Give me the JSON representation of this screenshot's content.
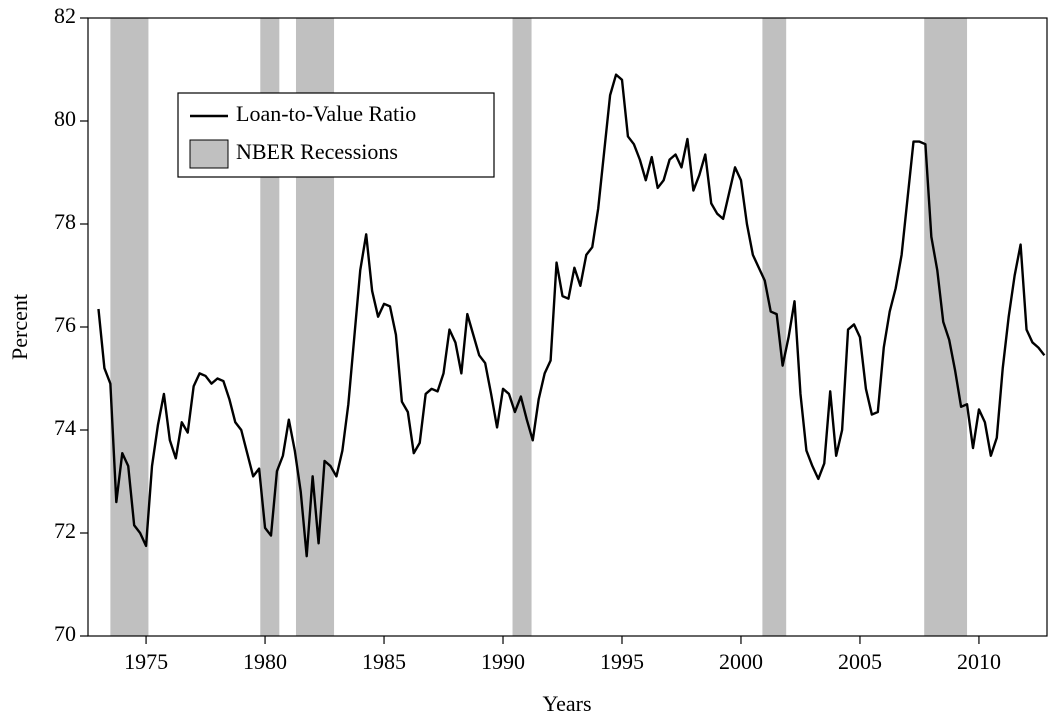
{
  "chart_data": {
    "type": "line",
    "xlabel": "Years",
    "ylabel": "Percent",
    "xlim": [
      1972.56,
      2012.86
    ],
    "ylim": [
      70,
      82
    ],
    "xticks": [
      1975,
      1980,
      1985,
      1990,
      1995,
      2000,
      2005,
      2010
    ],
    "yticks": [
      70,
      72,
      74,
      76,
      78,
      80,
      82
    ],
    "legend": "upper left",
    "recessions": {
      "name": "NBER Recessions",
      "color": "#c0c0c0",
      "spans": [
        [
          1973.5,
          1975.1
        ],
        [
          1979.8,
          1980.6
        ],
        [
          1981.3,
          1982.9
        ],
        [
          1990.4,
          1991.2
        ],
        [
          2000.9,
          2001.9
        ],
        [
          2007.7,
          2009.5
        ]
      ]
    },
    "x": [
      1973.0,
      1973.25,
      1973.5,
      1973.75,
      1974.0,
      1974.25,
      1974.5,
      1974.75,
      1975.0,
      1975.25,
      1975.5,
      1975.75,
      1976.0,
      1976.25,
      1976.5,
      1976.75,
      1977.0,
      1977.25,
      1977.5,
      1977.75,
      1978.0,
      1978.25,
      1978.5,
      1978.75,
      1979.0,
      1979.25,
      1979.5,
      1979.75,
      1980.0,
      1980.25,
      1980.5,
      1980.75,
      1981.0,
      1981.25,
      1981.5,
      1981.75,
      1982.0,
      1982.25,
      1982.5,
      1982.75,
      1983.0,
      1983.25,
      1983.5,
      1983.75,
      1984.0,
      1984.25,
      1984.5,
      1984.75,
      1985.0,
      1985.25,
      1985.5,
      1985.75,
      1986.0,
      1986.25,
      1986.5,
      1986.75,
      1987.0,
      1987.25,
      1987.5,
      1987.75,
      1988.0,
      1988.25,
      1988.5,
      1988.75,
      1989.0,
      1989.25,
      1989.5,
      1989.75,
      1990.0,
      1990.25,
      1990.5,
      1990.75,
      1991.0,
      1991.25,
      1991.5,
      1991.75,
      1992.0,
      1992.25,
      1992.5,
      1992.75,
      1993.0,
      1993.25,
      1993.5,
      1993.75,
      1994.0,
      1994.25,
      1994.5,
      1994.75,
      1995.0,
      1995.25,
      1995.5,
      1995.75,
      1996.0,
      1996.25,
      1996.5,
      1996.75,
      1997.0,
      1997.25,
      1997.5,
      1997.75,
      1998.0,
      1998.25,
      1998.5,
      1998.75,
      1999.0,
      1999.25,
      1999.5,
      1999.75,
      2000.0,
      2000.25,
      2000.5,
      2000.75,
      2001.0,
      2001.25,
      2001.5,
      2001.75,
      2002.0,
      2002.25,
      2002.5,
      2002.75,
      2003.0,
      2003.25,
      2003.5,
      2003.75,
      2004.0,
      2004.25,
      2004.5,
      2004.75,
      2005.0,
      2005.25,
      2005.5,
      2005.75,
      2006.0,
      2006.25,
      2006.5,
      2006.75,
      2007.0,
      2007.25,
      2007.5,
      2007.75,
      2008.0,
      2008.25,
      2008.5,
      2008.75,
      2009.0,
      2009.25,
      2009.5,
      2009.75,
      2010.0,
      2010.25,
      2010.5,
      2010.75,
      2011.0,
      2011.25,
      2011.5,
      2011.75,
      2012.0,
      2012.25,
      2012.5,
      2012.75
    ],
    "series": [
      {
        "name": "Loan-to-Value Ratio",
        "color": "#000000",
        "values": [
          76.35,
          75.2,
          74.9,
          72.6,
          73.55,
          73.3,
          72.15,
          72.0,
          71.75,
          73.3,
          74.1,
          74.7,
          73.8,
          73.45,
          74.15,
          73.95,
          74.85,
          75.1,
          75.05,
          74.9,
          75.0,
          74.95,
          74.6,
          74.15,
          74.0,
          73.55,
          73.1,
          73.25,
          72.1,
          71.95,
          73.2,
          73.5,
          74.2,
          73.6,
          72.8,
          71.55,
          73.1,
          71.8,
          73.4,
          73.3,
          73.1,
          73.6,
          74.5,
          75.8,
          77.1,
          77.8,
          76.7,
          76.2,
          76.45,
          76.4,
          75.85,
          74.55,
          74.35,
          73.55,
          73.75,
          74.7,
          74.8,
          74.75,
          75.1,
          75.95,
          75.7,
          75.1,
          76.25,
          75.85,
          75.45,
          75.3,
          74.7,
          74.05,
          74.8,
          74.7,
          74.35,
          74.65,
          74.2,
          73.8,
          74.6,
          75.1,
          75.35,
          77.25,
          76.6,
          76.55,
          77.15,
          76.8,
          77.4,
          77.55,
          78.3,
          79.4,
          80.5,
          80.9,
          80.8,
          79.7,
          79.55,
          79.25,
          78.85,
          79.3,
          78.7,
          78.85,
          79.25,
          79.35,
          79.1,
          79.65,
          78.65,
          78.95,
          79.35,
          78.4,
          78.2,
          78.1,
          78.6,
          79.1,
          78.85,
          78.0,
          77.4,
          77.15,
          76.9,
          76.3,
          76.25,
          75.25,
          75.8,
          76.5,
          74.7,
          73.6,
          73.3,
          73.05,
          73.35,
          74.75,
          73.5,
          74.0,
          75.95,
          76.05,
          75.8,
          74.8,
          74.3,
          74.35,
          75.6,
          76.3,
          76.75,
          77.4,
          78.5,
          79.6,
          79.6,
          79.55,
          77.75,
          77.1,
          76.1,
          75.75,
          75.15,
          74.45,
          74.5,
          73.65,
          74.4,
          74.15,
          73.5,
          73.85,
          75.2,
          76.2,
          77.0,
          77.6,
          75.95,
          75.7,
          75.6,
          75.45
        ]
      }
    ]
  }
}
